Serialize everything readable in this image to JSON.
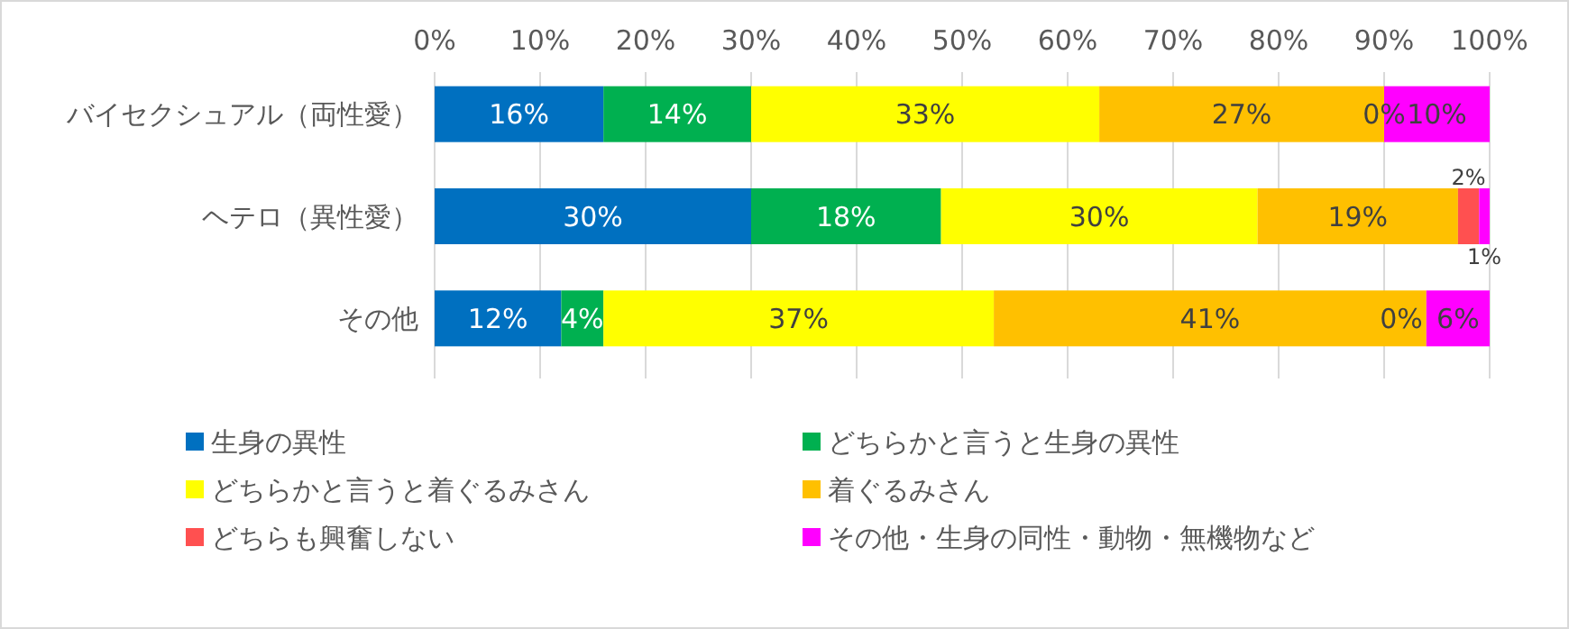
{
  "chart_data": {
    "type": "bar",
    "orientation": "horizontal",
    "stacked": true,
    "categories": [
      "バイセクシュアル（両性愛）",
      "ヘテロ（異性愛）",
      "その他"
    ],
    "series": [
      {
        "name": "生身の異性",
        "color": "#0070c0",
        "values": [
          16,
          30,
          12
        ],
        "value_labels": [
          "16%",
          "30%",
          "12%"
        ]
      },
      {
        "name": "どちらかと言うと生身の異性",
        "color": "#00b050",
        "values": [
          14,
          18,
          4
        ],
        "value_labels": [
          "14%",
          "18%",
          "4%"
        ]
      },
      {
        "name": "どちらかと言うと着ぐるみさん",
        "color": "#ffff00",
        "values": [
          33,
          30,
          37
        ],
        "value_labels": [
          "33%",
          "30%",
          "37%"
        ]
      },
      {
        "name": "着ぐるみさん",
        "color": "#ffc000",
        "values": [
          27,
          19,
          41
        ],
        "value_labels": [
          "27%",
          "19%",
          "41%"
        ]
      },
      {
        "name": "どちらも興奮しない",
        "color": "#ff5050",
        "values": [
          0,
          2,
          0
        ],
        "value_labels": [
          "0%",
          "2%",
          "0%"
        ]
      },
      {
        "name": "その他・生身の同性・動物・無機物など",
        "color": "#ff00ff",
        "values": [
          10,
          1,
          6
        ],
        "value_labels": [
          "10%",
          "1%",
          "6%"
        ]
      }
    ],
    "xlim": [
      0,
      100
    ],
    "xticks": [
      {
        "value": 0,
        "label": "0%"
      },
      {
        "value": 10,
        "label": "10%"
      },
      {
        "value": 20,
        "label": "20%"
      },
      {
        "value": 30,
        "label": "30%"
      },
      {
        "value": 40,
        "label": "40%"
      },
      {
        "value": 50,
        "label": "50%"
      },
      {
        "value": 60,
        "label": "60%"
      },
      {
        "value": 70,
        "label": "70%"
      },
      {
        "value": 80,
        "label": "80%"
      },
      {
        "value": 90,
        "label": "90%"
      },
      {
        "value": 100,
        "label": "100%"
      }
    ],
    "grid": "x",
    "legend": "bottom"
  }
}
